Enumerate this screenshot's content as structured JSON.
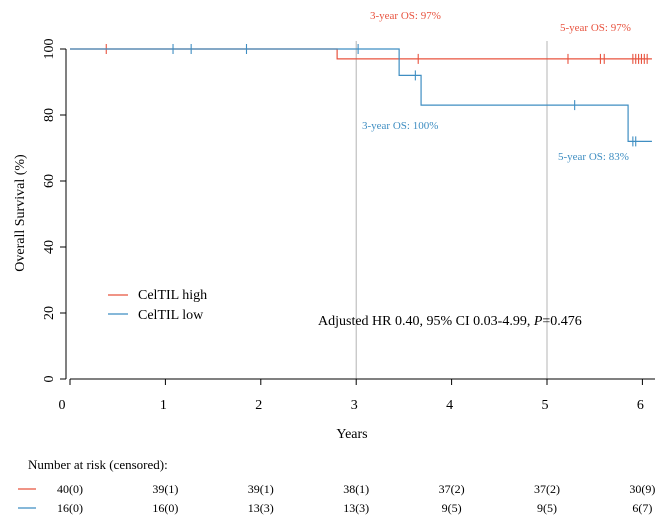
{
  "chart_data": {
    "type": "line",
    "title": "",
    "xlabel": "Years",
    "ylabel": "Overall Survival (%)",
    "xlim": [
      0,
      6.1
    ],
    "ylim": [
      0,
      100
    ],
    "xticks": [
      "0",
      "1",
      "2",
      "3",
      "4",
      "5",
      "6"
    ],
    "yticks": [
      "0",
      "20",
      "40",
      "60",
      "80",
      "100"
    ],
    "reference_lines_x": [
      3,
      5
    ],
    "colors": {
      "high": "#e8533f",
      "low": "#3f8ec2",
      "axis": "#000000",
      "ref": "#b4b4b4"
    },
    "series": [
      {
        "name": "CelTIL high",
        "key": "high",
        "steps": [
          [
            0,
            100
          ],
          [
            2.8,
            97
          ],
          [
            6.1,
            97
          ]
        ],
        "censor_x": [
          0.38,
          3.65,
          5.22,
          5.56,
          5.6,
          5.9,
          5.93,
          5.96,
          5.99,
          6.02,
          6.05
        ]
      },
      {
        "name": "CelTIL low",
        "key": "low",
        "steps": [
          [
            0,
            100
          ],
          [
            3.45,
            92
          ],
          [
            3.68,
            83
          ],
          [
            5.85,
            72
          ],
          [
            6.1,
            72
          ]
        ],
        "censor_x": [
          1.08,
          1.27,
          1.85,
          3.02,
          3.62,
          5.29,
          5.9,
          5.93
        ]
      }
    ],
    "annotations": {
      "high_3yr": "3-year OS: 97%",
      "high_5yr": "5-year OS: 97%",
      "low_3yr": "3-year OS: 100%",
      "low_5yr": "5-year OS: 83%",
      "hr_prefix": "Adjusted HR 0.40, 95% CI 0.03-4.99, ",
      "hr_p_symbol": "P",
      "hr_p_value": "=0.476"
    },
    "risk_table": {
      "title": "Number at risk (censored):",
      "high": [
        "40(0)",
        "39(1)",
        "39(1)",
        "38(1)",
        "37(2)",
        "37(2)",
        "30(9)"
      ],
      "low": [
        "16(0)",
        "16(0)",
        "13(3)",
        "13(3)",
        "9(5)",
        "9(5)",
        "6(7)"
      ]
    }
  }
}
